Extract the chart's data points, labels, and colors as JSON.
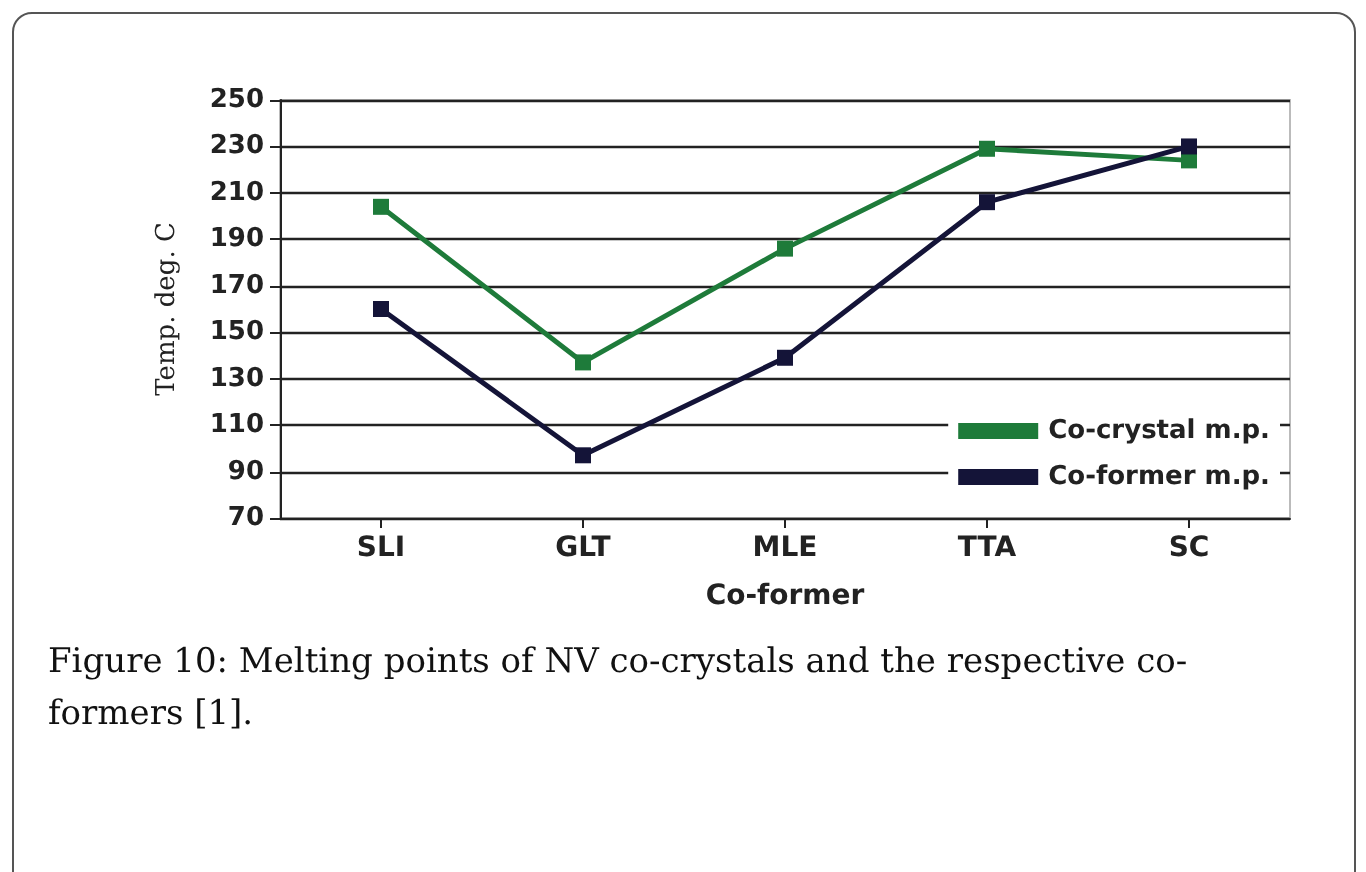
{
  "chart_data": {
    "type": "line",
    "xlabel": "Co-former",
    "ylabel": "Temp. deg. C",
    "categories": [
      "SLI",
      "GLT",
      "MLE",
      "TTA",
      "SC"
    ],
    "series": [
      {
        "name": "Co-crystal m.p.",
        "color": "#1e7b3a",
        "values": [
          204,
          137,
          186,
          229,
          224
        ]
      },
      {
        "name": "Co-former m.p.",
        "color": "#141438",
        "values": [
          160,
          97,
          139,
          206,
          230
        ]
      }
    ],
    "ylim": [
      70,
      250
    ],
    "yticks": [
      70,
      90,
      110,
      130,
      150,
      170,
      190,
      210,
      230,
      250
    ],
    "grid": "y",
    "legend": "bottom right",
    "marker": "square",
    "line_style": "solid",
    "annotations": [
      "Figure 10: Melting points of NV co-crystals and the respective co-formers [1]."
    ]
  }
}
